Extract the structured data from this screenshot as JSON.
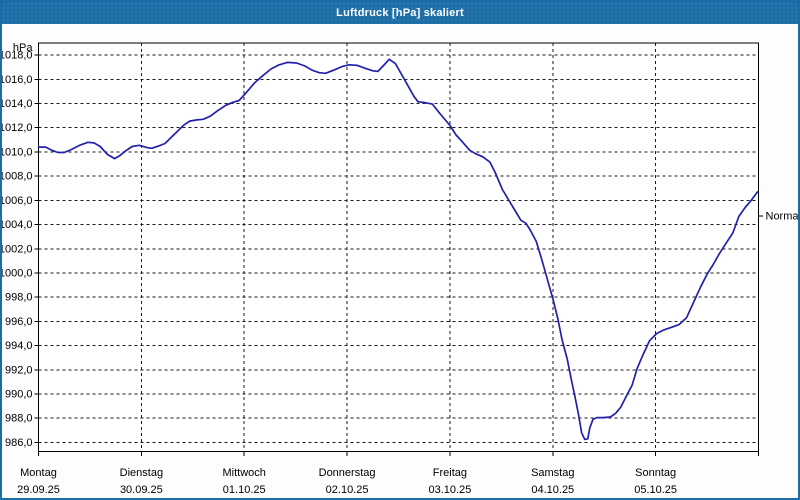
{
  "window": {
    "title": "Luftdruck [hPa] skaliert"
  },
  "colors": {
    "titlebar": "#1c6da6",
    "window_border": "#1c6da6",
    "line": "#2121ab",
    "grid": "#1a1a1a",
    "axis": "#000000",
    "background": "#fdfdfd",
    "plot_background": "#ffffff",
    "text": "#000000"
  },
  "chart_data": {
    "type": "line",
    "title": "Luftdruck [hPa] skaliert",
    "xlabel": "",
    "ylabel": "hPa",
    "unit_label": "hPa",
    "grid": true,
    "legend": "none",
    "ylim": [
      985.25,
      1019.0
    ],
    "y_ticks": [
      {
        "value": 1018,
        "label": "1018,0"
      },
      {
        "value": 1016,
        "label": "1016,0"
      },
      {
        "value": 1014,
        "label": "1014,0"
      },
      {
        "value": 1012,
        "label": "1012,0"
      },
      {
        "value": 1010,
        "label": "1010,0"
      },
      {
        "value": 1008,
        "label": "1008,0"
      },
      {
        "value": 1006,
        "label": "1006,0"
      },
      {
        "value": 1004,
        "label": "1004,0"
      },
      {
        "value": 1002,
        "label": "1002,0"
      },
      {
        "value": 1000,
        "label": "1000,0"
      },
      {
        "value": 998,
        "label": "998,0"
      },
      {
        "value": 996,
        "label": "996,0"
      },
      {
        "value": 994,
        "label": "994,0"
      },
      {
        "value": 992,
        "label": "992,0"
      },
      {
        "value": 990,
        "label": "990,0"
      },
      {
        "value": 988,
        "label": "988,0"
      },
      {
        "value": 986,
        "label": "986,0"
      }
    ],
    "x_days": [
      {
        "weekday": "Montag",
        "date": "29.09.25"
      },
      {
        "weekday": "Dienstag",
        "date": "30.09.25"
      },
      {
        "weekday": "Mittwoch",
        "date": "01.10.25"
      },
      {
        "weekday": "Donnerstag",
        "date": "02.10.25"
      },
      {
        "weekday": "Freitag",
        "date": "03.10.25"
      },
      {
        "weekday": "Samstag",
        "date": "04.10.25"
      },
      {
        "weekday": "Sonntag",
        "date": "05.10.25"
      }
    ],
    "normal_marker": {
      "label": "Normal",
      "value": 1004.7
    },
    "series": [
      {
        "name": "Luftdruck",
        "color": "#2121ab",
        "points": [
          [
            0.0,
            1010.4
          ],
          [
            0.07,
            1010.4
          ],
          [
            0.14,
            1010.1
          ],
          [
            0.19,
            1009.95
          ],
          [
            0.25,
            1009.95
          ],
          [
            0.32,
            1010.2
          ],
          [
            0.4,
            1010.55
          ],
          [
            0.48,
            1010.8
          ],
          [
            0.54,
            1010.75
          ],
          [
            0.6,
            1010.45
          ],
          [
            0.67,
            1009.8
          ],
          [
            0.74,
            1009.45
          ],
          [
            0.79,
            1009.7
          ],
          [
            0.85,
            1010.1
          ],
          [
            0.91,
            1010.45
          ],
          [
            0.98,
            1010.55
          ],
          [
            1.06,
            1010.35
          ],
          [
            1.1,
            1010.3
          ],
          [
            1.17,
            1010.5
          ],
          [
            1.23,
            1010.7
          ],
          [
            1.29,
            1011.2
          ],
          [
            1.35,
            1011.7
          ],
          [
            1.41,
            1012.2
          ],
          [
            1.47,
            1012.55
          ],
          [
            1.54,
            1012.65
          ],
          [
            1.6,
            1012.7
          ],
          [
            1.67,
            1012.95
          ],
          [
            1.74,
            1013.4
          ],
          [
            1.82,
            1013.85
          ],
          [
            1.89,
            1014.1
          ],
          [
            1.95,
            1014.25
          ],
          [
            2.02,
            1014.9
          ],
          [
            2.1,
            1015.7
          ],
          [
            2.18,
            1016.3
          ],
          [
            2.26,
            1016.85
          ],
          [
            2.34,
            1017.2
          ],
          [
            2.42,
            1017.4
          ],
          [
            2.51,
            1017.35
          ],
          [
            2.59,
            1017.1
          ],
          [
            2.66,
            1016.75
          ],
          [
            2.73,
            1016.55
          ],
          [
            2.79,
            1016.5
          ],
          [
            2.87,
            1016.75
          ],
          [
            2.95,
            1017.05
          ],
          [
            3.02,
            1017.2
          ],
          [
            3.1,
            1017.15
          ],
          [
            3.18,
            1016.9
          ],
          [
            3.25,
            1016.7
          ],
          [
            3.3,
            1016.65
          ],
          [
            3.35,
            1017.1
          ],
          [
            3.41,
            1017.65
          ],
          [
            3.47,
            1017.3
          ],
          [
            3.53,
            1016.4
          ],
          [
            3.59,
            1015.5
          ],
          [
            3.65,
            1014.6
          ],
          [
            3.69,
            1014.15
          ],
          [
            3.77,
            1014.05
          ],
          [
            3.83,
            1013.95
          ],
          [
            3.9,
            1013.2
          ],
          [
            3.96,
            1012.6
          ],
          [
            4.0,
            1012.2
          ],
          [
            4.06,
            1011.4
          ],
          [
            4.13,
            1010.75
          ],
          [
            4.19,
            1010.15
          ],
          [
            4.25,
            1009.85
          ],
          [
            4.32,
            1009.6
          ],
          [
            4.39,
            1009.15
          ],
          [
            4.44,
            1008.3
          ],
          [
            4.51,
            1006.9
          ],
          [
            4.58,
            1005.9
          ],
          [
            4.63,
            1005.2
          ],
          [
            4.69,
            1004.35
          ],
          [
            4.74,
            1004.1
          ],
          [
            4.78,
            1003.55
          ],
          [
            4.84,
            1002.6
          ],
          [
            4.9,
            1000.9
          ],
          [
            4.95,
            999.4
          ],
          [
            5.0,
            997.9
          ],
          [
            5.05,
            996.2
          ],
          [
            5.09,
            994.5
          ],
          [
            5.14,
            992.9
          ],
          [
            5.18,
            991.2
          ],
          [
            5.22,
            989.6
          ],
          [
            5.25,
            988.3
          ],
          [
            5.28,
            986.8
          ],
          [
            5.31,
            986.25
          ],
          [
            5.34,
            986.3
          ],
          [
            5.36,
            987.2
          ],
          [
            5.39,
            987.9
          ],
          [
            5.43,
            988.05
          ],
          [
            5.49,
            988.05
          ],
          [
            5.56,
            988.1
          ],
          [
            5.61,
            988.4
          ],
          [
            5.66,
            988.9
          ],
          [
            5.72,
            989.9
          ],
          [
            5.77,
            990.7
          ],
          [
            5.82,
            992.1
          ],
          [
            5.88,
            993.3
          ],
          [
            5.94,
            994.4
          ],
          [
            6.01,
            995.0
          ],
          [
            6.08,
            995.3
          ],
          [
            6.15,
            995.5
          ],
          [
            6.23,
            995.75
          ],
          [
            6.3,
            996.3
          ],
          [
            6.37,
            997.6
          ],
          [
            6.44,
            998.9
          ],
          [
            6.5,
            999.9
          ],
          [
            6.56,
            1000.7
          ],
          [
            6.62,
            1001.6
          ],
          [
            6.68,
            1002.4
          ],
          [
            6.75,
            1003.3
          ],
          [
            6.81,
            1004.7
          ],
          [
            6.87,
            1005.4
          ],
          [
            6.93,
            1006.0
          ],
          [
            6.99,
            1006.7
          ]
        ]
      }
    ]
  }
}
